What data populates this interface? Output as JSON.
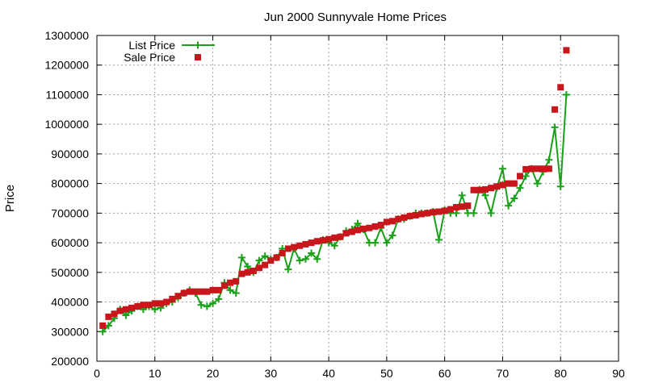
{
  "chart_data": {
    "type": "line",
    "title": "Jun 2000 Sunnyvale Home Prices",
    "xlabel": "",
    "ylabel": "Price",
    "xlim": [
      0,
      90
    ],
    "ylim": [
      200000,
      1300000
    ],
    "x_ticks": [
      0,
      10,
      20,
      30,
      40,
      50,
      60,
      70,
      80,
      90
    ],
    "y_ticks": [
      200000,
      300000,
      400000,
      500000,
      600000,
      700000,
      800000,
      900000,
      1000000,
      1100000,
      1200000,
      1300000
    ],
    "x_tick_labels": [
      "0",
      "10",
      "20",
      "30",
      "40",
      "50",
      "60",
      "70",
      "80",
      "90"
    ],
    "y_tick_labels": [
      "200000",
      "300000",
      "400000",
      "500000",
      "600000",
      "700000",
      "800000",
      "900000",
      "1000000",
      "1100000",
      "1200000",
      "1300000"
    ],
    "grid": true,
    "legend_position": "top-left",
    "series": [
      {
        "name": "List Price",
        "style": "line-plus",
        "color": "#1aa019",
        "x": [
          1,
          2,
          3,
          4,
          5,
          6,
          7,
          8,
          9,
          10,
          11,
          12,
          13,
          14,
          15,
          16,
          17,
          18,
          19,
          20,
          21,
          22,
          23,
          24,
          25,
          26,
          27,
          28,
          29,
          30,
          31,
          32,
          33,
          34,
          35,
          36,
          37,
          38,
          39,
          40,
          41,
          42,
          43,
          44,
          45,
          46,
          47,
          48,
          49,
          50,
          51,
          52,
          53,
          54,
          55,
          56,
          57,
          58,
          59,
          60,
          61,
          62,
          63,
          64,
          65,
          66,
          67,
          68,
          69,
          70,
          71,
          72,
          73,
          74,
          75,
          76,
          77,
          78,
          79,
          80,
          81
        ],
        "values": [
          300000,
          320000,
          345000,
          375000,
          355000,
          370000,
          385000,
          375000,
          385000,
          375000,
          380000,
          395000,
          400000,
          415000,
          430000,
          440000,
          430000,
          390000,
          385000,
          395000,
          410000,
          465000,
          440000,
          430000,
          550000,
          520000,
          500000,
          540000,
          555000,
          545000,
          550000,
          580000,
          510000,
          580000,
          540000,
          545000,
          565000,
          545000,
          610000,
          600000,
          590000,
          620000,
          640000,
          645000,
          665000,
          645000,
          600000,
          600000,
          650000,
          600000,
          625000,
          680000,
          680000,
          690000,
          700000,
          700000,
          700000,
          705000,
          610000,
          710000,
          700000,
          700000,
          760000,
          700000,
          700000,
          780000,
          760000,
          700000,
          785000,
          850000,
          725000,
          750000,
          785000,
          825000,
          850000,
          800000,
          840000,
          880000,
          990000,
          790000,
          1100000
        ]
      },
      {
        "name": "Sale Price",
        "style": "square",
        "color": "#c8161d",
        "x": [
          1,
          2,
          3,
          4,
          5,
          6,
          7,
          8,
          9,
          10,
          11,
          12,
          13,
          14,
          15,
          16,
          17,
          18,
          19,
          20,
          21,
          22,
          23,
          24,
          25,
          26,
          27,
          28,
          29,
          30,
          31,
          32,
          33,
          34,
          35,
          36,
          37,
          38,
          39,
          40,
          41,
          42,
          43,
          44,
          45,
          46,
          47,
          48,
          49,
          50,
          51,
          52,
          53,
          54,
          55,
          56,
          57,
          58,
          59,
          60,
          61,
          62,
          63,
          64,
          65,
          66,
          67,
          68,
          69,
          70,
          71,
          72,
          73,
          74,
          75,
          76,
          77,
          78,
          79,
          80,
          81
        ],
        "values": [
          320000,
          350000,
          360000,
          370000,
          375000,
          380000,
          385000,
          390000,
          390000,
          395000,
          395000,
          400000,
          410000,
          420000,
          430000,
          435000,
          435000,
          435000,
          435000,
          440000,
          440000,
          455000,
          465000,
          470000,
          495000,
          500000,
          505000,
          515000,
          525000,
          540000,
          550000,
          565000,
          580000,
          585000,
          590000,
          595000,
          600000,
          605000,
          608000,
          612000,
          617000,
          620000,
          632000,
          637000,
          643000,
          647000,
          650000,
          655000,
          660000,
          670000,
          673000,
          680000,
          685000,
          690000,
          693000,
          697000,
          700000,
          703000,
          705000,
          708000,
          713000,
          720000,
          722000,
          725000,
          778000,
          778000,
          780000,
          785000,
          790000,
          795000,
          800000,
          800000,
          825000,
          848000,
          850000,
          850000,
          850000,
          850000,
          1050000,
          1125000,
          1250000
        ]
      }
    ]
  }
}
